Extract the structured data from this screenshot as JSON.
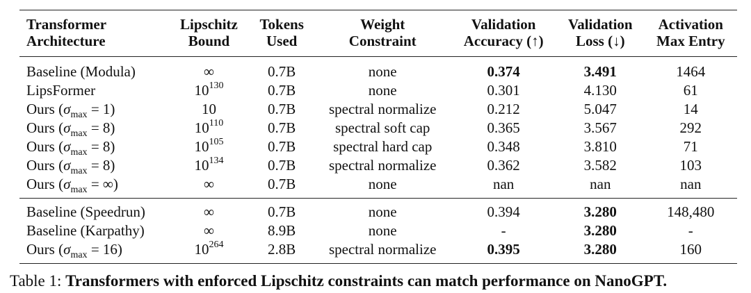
{
  "table": {
    "headers": [
      {
        "line1": "Transformer",
        "line2": "Architecture"
      },
      {
        "line1": "Lipschitz",
        "line2": "Bound"
      },
      {
        "line1": "Tokens",
        "line2": "Used"
      },
      {
        "line1": "Weight",
        "line2": "Constraint"
      },
      {
        "line1": "Validation",
        "line2": "Accuracy (↑)"
      },
      {
        "line1": "Validation",
        "line2": "Loss (↓)"
      },
      {
        "line1": "Activation",
        "line2": "Max Entry"
      }
    ],
    "group1": [
      {
        "arch": "Baseline (Modula)",
        "sigma": "",
        "bound_base": "∞",
        "bound_exp": "",
        "tokens": "0.7B",
        "constraint": "none",
        "acc": "0.374",
        "acc_bold": true,
        "loss": "3.491",
        "loss_bold": true,
        "act": "1464"
      },
      {
        "arch": "LipsFormer",
        "sigma": "",
        "bound_base": "10",
        "bound_exp": "130",
        "tokens": "0.7B",
        "constraint": "none",
        "acc": "0.301",
        "acc_bold": false,
        "loss": "4.130",
        "loss_bold": false,
        "act": "61"
      },
      {
        "arch": "Ours",
        "sigma": "1",
        "bound_base": "10",
        "bound_exp": "",
        "tokens": "0.7B",
        "constraint": "spectral normalize",
        "acc": "0.212",
        "acc_bold": false,
        "loss": "5.047",
        "loss_bold": false,
        "act": "14"
      },
      {
        "arch": "Ours",
        "sigma": "8",
        "bound_base": "10",
        "bound_exp": "110",
        "tokens": "0.7B",
        "constraint": "spectral soft cap",
        "acc": "0.365",
        "acc_bold": false,
        "loss": "3.567",
        "loss_bold": false,
        "act": "292"
      },
      {
        "arch": "Ours",
        "sigma": "8",
        "bound_base": "10",
        "bound_exp": "105",
        "tokens": "0.7B",
        "constraint": "spectral hard cap",
        "acc": "0.348",
        "acc_bold": false,
        "loss": "3.810",
        "loss_bold": false,
        "act": "71"
      },
      {
        "arch": "Ours",
        "sigma": "8",
        "bound_base": "10",
        "bound_exp": "134",
        "tokens": "0.7B",
        "constraint": "spectral normalize",
        "acc": "0.362",
        "acc_bold": false,
        "loss": "3.582",
        "loss_bold": false,
        "act": "103"
      },
      {
        "arch": "Ours",
        "sigma": "∞",
        "bound_base": "∞",
        "bound_exp": "",
        "tokens": "0.7B",
        "constraint": "none",
        "acc": "nan",
        "acc_bold": false,
        "loss": "nan",
        "loss_bold": false,
        "act": "nan"
      }
    ],
    "group2": [
      {
        "arch": "Baseline (Speedrun)",
        "sigma": "",
        "bound_base": "∞",
        "bound_exp": "",
        "tokens": "0.7B",
        "constraint": "none",
        "acc": "0.394",
        "acc_bold": false,
        "loss": "3.280",
        "loss_bold": true,
        "act": "148,480"
      },
      {
        "arch": "Baseline (Karpathy)",
        "sigma": "",
        "bound_base": "∞",
        "bound_exp": "",
        "tokens": "8.9B",
        "constraint": "none",
        "acc": "-",
        "acc_bold": false,
        "loss": "3.280",
        "loss_bold": true,
        "act": "-"
      },
      {
        "arch": "Ours",
        "sigma": "16",
        "bound_base": "10",
        "bound_exp": "264",
        "tokens": "2.8B",
        "constraint": "spectral normalize",
        "acc": "0.395",
        "acc_bold": true,
        "loss": "3.280",
        "loss_bold": true,
        "act": "160"
      }
    ]
  },
  "caption": {
    "label": "Table 1:",
    "text": "Transformers with enforced Lipschitz constraints can match performance on NanoGPT."
  }
}
